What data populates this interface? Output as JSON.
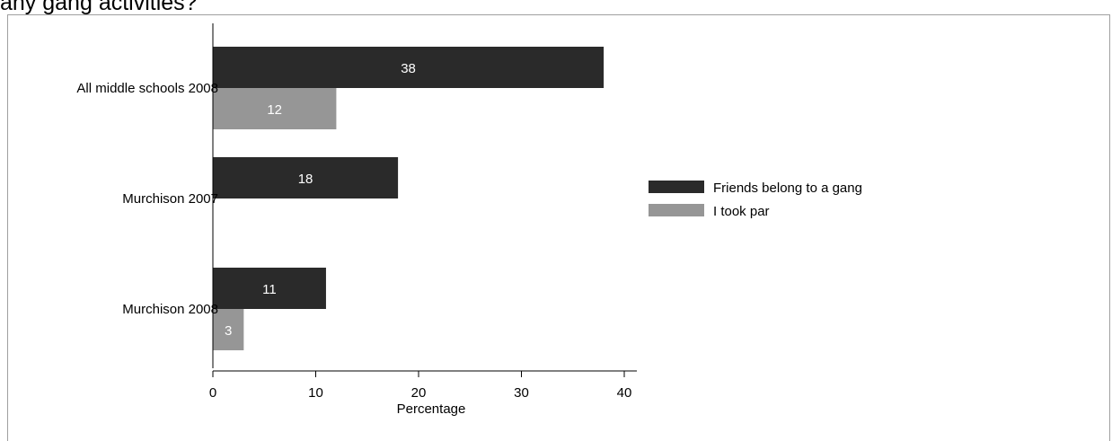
{
  "page": {
    "title_fragment": "any gang activities?"
  },
  "colors": {
    "series_dark": "#2a2a2a",
    "series_light": "#969696",
    "axis": "#000000",
    "frame": "#a0a0a0"
  },
  "chart_data": {
    "type": "bar",
    "orientation": "horizontal",
    "categories": [
      "All middle schools 2008",
      "Murchison 2007",
      "Murchison 2008"
    ],
    "series": [
      {
        "name": "Friends belong to a gang",
        "values": [
          38,
          18,
          11
        ],
        "color": "#2a2a2a"
      },
      {
        "name": "I took par",
        "values": [
          12,
          null,
          3
        ],
        "color": "#969696"
      }
    ],
    "data_labels": [
      [
        "38",
        "18",
        "11"
      ],
      [
        "12",
        "",
        "3"
      ]
    ],
    "xlabel": "Percentage",
    "ylabel": "",
    "xlim": [
      0,
      41.5
    ],
    "xticks": [
      0,
      10,
      20,
      30,
      40
    ],
    "xtick_labels": [
      "0",
      "10",
      "20",
      "30",
      "40"
    ],
    "grid": false,
    "legend_position": "right"
  }
}
